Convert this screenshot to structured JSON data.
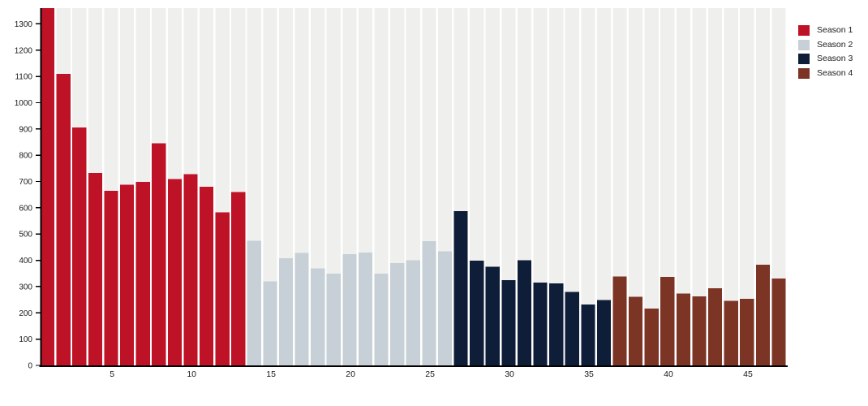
{
  "chart_data": {
    "type": "bar",
    "title": "",
    "xlabel": "",
    "ylabel": "",
    "x_unit": "episode-number",
    "x_tick_labels": [
      5,
      10,
      15,
      20,
      25,
      30,
      35,
      40,
      45
    ],
    "y_ticks": [
      0,
      100,
      200,
      300,
      400,
      500,
      600,
      700,
      800,
      900,
      1000,
      1100,
      1200,
      1300
    ],
    "y_max": 1360,
    "grid": "off",
    "background_bands": true,
    "band_color": "#efefed",
    "gap_color": "#ffffff",
    "axis_color": "#000000",
    "tick_label_color": "#1a1a1a",
    "legend_position": "top-right",
    "series": [
      {
        "name": "Season 1",
        "color": "#be1227",
        "start_episode": 1,
        "values": [
          1360,
          1110,
          905,
          732,
          664,
          687,
          698,
          846,
          710,
          728,
          680,
          582,
          660
        ]
      },
      {
        "name": "Season 2",
        "color": "#c7d0d6",
        "start_episode": 14,
        "values": [
          474,
          320,
          408,
          428,
          369,
          349,
          424,
          429,
          349,
          390,
          401,
          473,
          434
        ]
      },
      {
        "name": "Season 3",
        "color": "#0f1e38",
        "start_episode": 27,
        "values": [
          587,
          399,
          375,
          324,
          401,
          316,
          312,
          280,
          232,
          249
        ]
      },
      {
        "name": "Season 4",
        "color": "#7c3425",
        "start_episode": 37,
        "values": [
          338,
          261,
          216,
          337,
          274,
          263,
          294,
          245,
          253,
          383,
          331
        ]
      }
    ]
  },
  "legend": {
    "items": [
      {
        "label": "Season 1",
        "color": "#be1227"
      },
      {
        "label": "Season 2",
        "color": "#c7d0d6"
      },
      {
        "label": "Season 3",
        "color": "#0f1e38"
      },
      {
        "label": "Season 4",
        "color": "#7c3425"
      }
    ]
  }
}
